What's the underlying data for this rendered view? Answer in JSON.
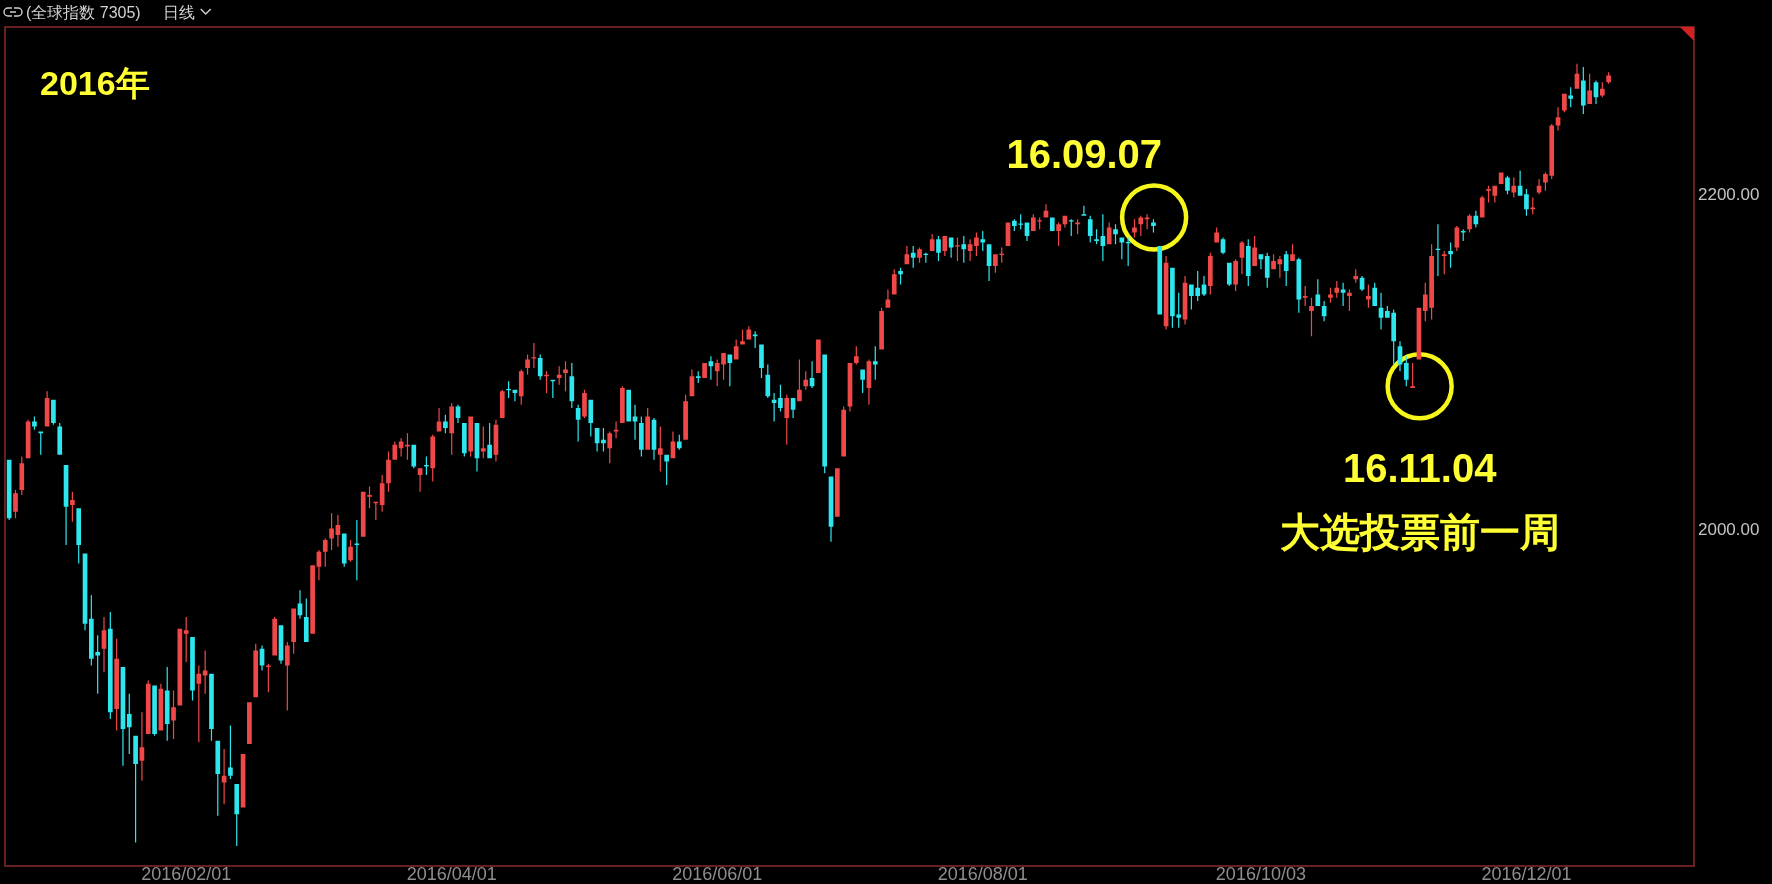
{
  "chart_data": {
    "type": "candlestick",
    "title": "2016年",
    "categories": [
      null,
      null,
      null,
      null,
      null,
      null,
      null,
      null,
      null,
      null,
      null,
      null,
      null,
      null,
      null,
      null,
      null,
      null,
      null,
      null,
      null,
      null,
      null,
      null,
      null,
      null,
      null,
      null,
      "2016/02/01",
      null,
      null,
      null,
      null,
      null,
      null,
      null,
      null,
      null,
      null,
      null,
      null,
      null,
      null,
      null,
      null,
      null,
      null,
      null,
      null,
      null,
      null,
      null,
      null,
      null,
      null,
      null,
      null,
      null,
      null,
      null,
      null,
      null,
      null,
      null,
      null,
      null,
      null,
      null,
      null,
      null,
      "2016/04/01",
      null,
      null,
      null,
      null,
      null,
      null,
      null,
      null,
      null,
      null,
      null,
      null,
      null,
      null,
      null,
      null,
      null,
      null,
      null,
      null,
      null,
      null,
      null,
      null,
      null,
      null,
      null,
      null,
      null,
      null,
      null,
      null,
      null,
      null,
      null,
      null,
      null,
      null,
      null,
      null,
      null,
      "2016/06/01",
      null,
      null,
      null,
      null,
      null,
      null,
      null,
      null,
      null,
      null,
      null,
      null,
      null,
      null,
      null,
      null,
      null,
      null,
      null,
      null,
      null,
      null,
      null,
      null,
      null,
      null,
      null,
      null,
      null,
      null,
      null,
      null,
      null,
      null,
      null,
      null,
      null,
      null,
      null,
      null,
      null,
      "2016/08/01",
      null,
      null,
      null,
      null,
      null,
      null,
      null,
      null,
      null,
      null,
      null,
      null,
      null,
      null,
      null,
      null,
      null,
      null,
      null,
      null,
      null,
      null,
      null,
      null,
      null,
      null,
      null,
      null,
      null,
      null,
      null,
      null,
      null,
      null,
      null,
      null,
      null,
      null,
      null,
      null,
      null,
      null,
      null,
      "2016/10/03",
      null,
      null,
      null,
      null,
      null,
      null,
      null,
      null,
      null,
      null,
      null,
      null,
      null,
      null,
      null,
      null,
      null,
      null,
      null,
      null,
      null,
      null,
      null,
      null,
      null,
      null,
      null,
      null,
      null,
      null,
      null,
      null,
      null,
      null,
      null,
      null,
      null,
      null,
      null,
      null,
      null,
      "2016/12/01",
      null,
      null,
      null,
      null,
      null,
      null,
      null,
      null,
      null,
      null,
      null,
      null,
      null
    ],
    "ohlc": [
      [
        2041,
        2041,
        2005,
        2006
      ],
      [
        2010,
        2023,
        2006,
        2021
      ],
      [
        2023,
        2043,
        2020,
        2039
      ],
      [
        2042,
        2065,
        2042,
        2064
      ],
      [
        2064,
        2067,
        2059,
        2061
      ],
      [
        2058,
        2058,
        2044,
        2057
      ],
      [
        2061,
        2082,
        2061,
        2078
      ],
      [
        2077,
        2077,
        2062,
        2063
      ],
      [
        2061,
        2063,
        2044,
        2044
      ],
      [
        2038,
        2038,
        1990,
        2013
      ],
      [
        2014,
        2022,
        2004,
        2017
      ],
      [
        2012,
        2012,
        1979,
        1990
      ],
      [
        1985,
        1985,
        1939,
        1943
      ],
      [
        1946,
        1960,
        1918,
        1922
      ],
      [
        1926,
        1936,
        1901,
        1924
      ],
      [
        1928,
        1947,
        1914,
        1939
      ],
      [
        1940,
        1950,
        1886,
        1890
      ],
      [
        1892,
        1934,
        1879,
        1922
      ],
      [
        1917,
        1917,
        1858,
        1880
      ],
      [
        1889,
        1901,
        1865,
        1881
      ],
      [
        1876,
        1876,
        1812,
        1859
      ],
      [
        1861,
        1890,
        1849,
        1869
      ],
      [
        1877,
        1909,
        1877,
        1907
      ],
      [
        1906,
        1906,
        1876,
        1877
      ],
      [
        1879,
        1907,
        1879,
        1904
      ],
      [
        1903,
        1917,
        1873,
        1883
      ],
      [
        1885,
        1903,
        1874,
        1893
      ],
      [
        1894,
        1940,
        1894,
        1940
      ],
      [
        1937,
        1947,
        1920,
        1939
      ],
      [
        1935,
        1935,
        1897,
        1903
      ],
      [
        1907,
        1918,
        1872,
        1913
      ],
      [
        1912,
        1927,
        1901,
        1915
      ],
      [
        1913,
        1913,
        1873,
        1880
      ],
      [
        1873,
        1873,
        1828,
        1853
      ],
      [
        1848,
        1868,
        1835,
        1852
      ],
      [
        1857,
        1882,
        1850,
        1852
      ],
      [
        1847,
        1847,
        1810,
        1829
      ],
      [
        1833,
        1865,
        1833,
        1865
      ],
      [
        1871,
        1896,
        1871,
        1896
      ],
      [
        1899,
        1931,
        1899,
        1927
      ],
      [
        1928,
        1930,
        1915,
        1918
      ],
      [
        1917,
        1919,
        1902,
        1918
      ],
      [
        1924,
        1947,
        1924,
        1946
      ],
      [
        1942,
        1942,
        1919,
        1921
      ],
      [
        1918,
        1932,
        1891,
        1930
      ],
      [
        1932,
        1952,
        1925,
        1952
      ],
      [
        1955,
        1963,
        1946,
        1948
      ],
      [
        1947,
        1958,
        1932,
        1932
      ],
      [
        1937,
        1978,
        1937,
        1978
      ],
      [
        1977,
        1987,
        1969,
        1986
      ],
      [
        1986,
        1994,
        1977,
        1993
      ],
      [
        1994,
        2009,
        1987,
        2000
      ],
      [
        1996,
        2008,
        1989,
        2002
      ],
      [
        1997,
        1997,
        1977,
        1979
      ],
      [
        1981,
        1993,
        1980,
        1989
      ],
      [
        1991,
        2005,
        1969,
        1990
      ],
      [
        1995,
        2022,
        1995,
        2022
      ],
      [
        2019,
        2025,
        2012,
        2020
      ],
      [
        2015,
        2016,
        2005,
        2016
      ],
      [
        2014,
        2032,
        2010,
        2027
      ],
      [
        2027,
        2046,
        2022,
        2041
      ],
      [
        2041,
        2052,
        2041,
        2050
      ],
      [
        2048,
        2054,
        2043,
        2052
      ],
      [
        2049,
        2057,
        2041,
        2050
      ],
      [
        2050,
        2050,
        2036,
        2037
      ],
      [
        2032,
        2036,
        2022,
        2036
      ],
      [
        2038,
        2043,
        2032,
        2037
      ],
      [
        2036,
        2056,
        2028,
        2055
      ],
      [
        2058,
        2072,
        2058,
        2064
      ],
      [
        2064,
        2068,
        2057,
        2060
      ],
      [
        2057,
        2075,
        2044,
        2073
      ],
      [
        2073,
        2074,
        2063,
        2066
      ],
      [
        2063,
        2063,
        2043,
        2045
      ],
      [
        2046,
        2067,
        2043,
        2067
      ],
      [
        2063,
        2063,
        2034,
        2042
      ],
      [
        2046,
        2061,
        2042,
        2048
      ],
      [
        2050,
        2063,
        2042,
        2042
      ],
      [
        2044,
        2065,
        2040,
        2062
      ],
      [
        2066,
        2083,
        2066,
        2082
      ],
      [
        2083,
        2088,
        2078,
        2083
      ],
      [
        2083,
        2083,
        2076,
        2081
      ],
      [
        2079,
        2095,
        2074,
        2094
      ],
      [
        2096,
        2104,
        2092,
        2101
      ],
      [
        2102,
        2111,
        2096,
        2102
      ],
      [
        2102,
        2104,
        2089,
        2091
      ],
      [
        2091,
        2094,
        2081,
        2092
      ],
      [
        2089,
        2089,
        2078,
        2088
      ],
      [
        2090,
        2097,
        2086,
        2092
      ],
      [
        2093,
        2100,
        2082,
        2095
      ],
      [
        2091,
        2099,
        2072,
        2076
      ],
      [
        2072,
        2074,
        2052,
        2065
      ],
      [
        2067,
        2083,
        2066,
        2081
      ],
      [
        2077,
        2077,
        2055,
        2063
      ],
      [
        2060,
        2060,
        2046,
        2051
      ],
      [
        2053,
        2060,
        2046,
        2051
      ],
      [
        2048,
        2058,
        2039,
        2057
      ],
      [
        2058,
        2064,
        2054,
        2059
      ],
      [
        2063,
        2085,
        2063,
        2084
      ],
      [
        2083,
        2083,
        2064,
        2064
      ],
      [
        2067,
        2074,
        2053,
        2064
      ],
      [
        2063,
        2067,
        2043,
        2047
      ],
      [
        2047,
        2072,
        2047,
        2067
      ],
      [
        2065,
        2066,
        2041,
        2047
      ],
      [
        2044,
        2061,
        2034,
        2048
      ],
      [
        2044,
        2044,
        2026,
        2040
      ],
      [
        2042,
        2058,
        2042,
        2052
      ],
      [
        2052,
        2056,
        2047,
        2048
      ],
      [
        2053,
        2080,
        2053,
        2076
      ],
      [
        2079,
        2095,
        2079,
        2091
      ],
      [
        2091,
        2094,
        2087,
        2090
      ],
      [
        2090,
        2099,
        2090,
        2099
      ],
      [
        2100,
        2103,
        2089,
        2097
      ],
      [
        2094,
        2101,
        2085,
        2099
      ],
      [
        2098,
        2105,
        2089,
        2105
      ],
      [
        2104,
        2104,
        2085,
        2099
      ],
      [
        2101,
        2113,
        2101,
        2109
      ],
      [
        2110,
        2119,
        2110,
        2112
      ],
      [
        2113,
        2121,
        2113,
        2119
      ],
      [
        2116,
        2118,
        2108,
        2115
      ],
      [
        2110,
        2110,
        2090,
        2096
      ],
      [
        2092,
        2098,
        2078,
        2079
      ],
      [
        2077,
        2081,
        2064,
        2075
      ],
      [
        2078,
        2086,
        2070,
        2072
      ],
      [
        2066,
        2080,
        2050,
        2078
      ],
      [
        2078,
        2078,
        2066,
        2071
      ],
      [
        2076,
        2101,
        2076,
        2083
      ],
      [
        2085,
        2094,
        2083,
        2089
      ],
      [
        2090,
        2100,
        2084,
        2085
      ],
      [
        2093,
        2113,
        2093,
        2113
      ],
      [
        2104,
        2104,
        2033,
        2037
      ],
      [
        2031,
        2031,
        1992,
        2001
      ],
      [
        2007,
        2036,
        2007,
        2036
      ],
      [
        2043,
        2073,
        2043,
        2071
      ],
      [
        2073,
        2099,
        2070,
        2099
      ],
      [
        2099,
        2109,
        2098,
        2103
      ],
      [
        2095,
        2095,
        2081,
        2089
      ],
      [
        2084,
        2101,
        2074,
        2100
      ],
      [
        2100,
        2109,
        2089,
        2098
      ],
      [
        2107,
        2132,
        2107,
        2130
      ],
      [
        2132,
        2143,
        2132,
        2137
      ],
      [
        2140,
        2155,
        2140,
        2152
      ],
      [
        2154,
        2156,
        2146,
        2152
      ],
      [
        2158,
        2169,
        2158,
        2164
      ],
      [
        2165,
        2169,
        2156,
        2162
      ],
      [
        2162,
        2168,
        2159,
        2167
      ],
      [
        2164,
        2165,
        2159,
        2164
      ],
      [
        2166,
        2176,
        2166,
        2173
      ],
      [
        2173,
        2175,
        2160,
        2165
      ],
      [
        2166,
        2175,
        2163,
        2175
      ],
      [
        2174,
        2174,
        2162,
        2168
      ],
      [
        2169,
        2174,
        2160,
        2169
      ],
      [
        2170,
        2175,
        2159,
        2167
      ],
      [
        2166,
        2173,
        2160,
        2170
      ],
      [
        2169,
        2177,
        2163,
        2174
      ],
      [
        2173,
        2178,
        2166,
        2171
      ],
      [
        2170,
        2170,
        2148,
        2157
      ],
      [
        2157,
        2164,
        2153,
        2164
      ],
      [
        2164,
        2168,
        2159,
        2164
      ],
      [
        2169,
        2183,
        2169,
        2183
      ],
      [
        2184,
        2185,
        2178,
        2181
      ],
      [
        2182,
        2188,
        2179,
        2182
      ],
      [
        2183,
        2183,
        2172,
        2175
      ],
      [
        2178,
        2188,
        2178,
        2186
      ],
      [
        2184,
        2186,
        2179,
        2184
      ],
      [
        2186,
        2194,
        2186,
        2190
      ],
      [
        2186,
        2186,
        2178,
        2178
      ],
      [
        2178,
        2183,
        2169,
        2182
      ],
      [
        2182,
        2187,
        2180,
        2187
      ],
      [
        2184,
        2185,
        2175,
        2184
      ],
      [
        2182,
        2185,
        2176,
        2183
      ],
      [
        2188,
        2193,
        2187,
        2187
      ],
      [
        2185,
        2187,
        2171,
        2175
      ],
      [
        2173,
        2179,
        2170,
        2172
      ],
      [
        2175,
        2188,
        2160,
        2169
      ],
      [
        2170,
        2183,
        2170,
        2180
      ],
      [
        2179,
        2182,
        2170,
        2176
      ],
      [
        2174,
        2174,
        2161,
        2171
      ],
      [
        2171,
        2174,
        2157,
        2171
      ],
      [
        2177,
        2185,
        2174,
        2180
      ],
      [
        2182,
        2187,
        2175,
        2186
      ],
      [
        2185,
        2188,
        2179,
        2186
      ],
      [
        2183,
        2185,
        2177,
        2181
      ],
      [
        2169,
        2169,
        2128,
        2128
      ],
      [
        2121,
        2163,
        2119,
        2159
      ],
      [
        2156,
        2156,
        2120,
        2127
      ],
      [
        2128,
        2141,
        2120,
        2126
      ],
      [
        2125,
        2151,
        2122,
        2147
      ],
      [
        2146,
        2146,
        2131,
        2139
      ],
      [
        2144,
        2154,
        2136,
        2139
      ],
      [
        2146,
        2151,
        2139,
        2140
      ],
      [
        2145,
        2165,
        2140,
        2163
      ],
      [
        2171,
        2180,
        2171,
        2177
      ],
      [
        2173,
        2174,
        2164,
        2165
      ],
      [
        2159,
        2159,
        2145,
        2146
      ],
      [
        2146,
        2161,
        2142,
        2160
      ],
      [
        2162,
        2172,
        2152,
        2171
      ],
      [
        2169,
        2173,
        2145,
        2151
      ],
      [
        2157,
        2175,
        2157,
        2168
      ],
      [
        2164,
        2164,
        2155,
        2161
      ],
      [
        2163,
        2165,
        2144,
        2150
      ],
      [
        2155,
        2164,
        2155,
        2160
      ],
      [
        2158,
        2163,
        2150,
        2161
      ],
      [
        2164,
        2166,
        2145,
        2154
      ],
      [
        2160,
        2170,
        2160,
        2164
      ],
      [
        2161,
        2162,
        2129,
        2137
      ],
      [
        2138,
        2145,
        2133,
        2139
      ],
      [
        2130,
        2138,
        2115,
        2133
      ],
      [
        2140,
        2149,
        2133,
        2133
      ],
      [
        2133,
        2136,
        2124,
        2127
      ],
      [
        2138,
        2144,
        2135,
        2140
      ],
      [
        2141,
        2148,
        2138,
        2144
      ],
      [
        2143,
        2147,
        2133,
        2141
      ],
      [
        2139,
        2143,
        2130,
        2141
      ],
      [
        2149,
        2155,
        2147,
        2151
      ],
      [
        2150,
        2151,
        2142,
        2143
      ],
      [
        2137,
        2146,
        2132,
        2139
      ],
      [
        2144,
        2147,
        2133,
        2133
      ],
      [
        2132,
        2141,
        2119,
        2126
      ],
      [
        2130,
        2133,
        2126,
        2126
      ],
      [
        2129,
        2131,
        2098,
        2112
      ],
      [
        2109,
        2112,
        2094,
        2098
      ],
      [
        2099,
        2103,
        2085,
        2089
      ],
      [
        2084,
        2099,
        2084,
        2085
      ],
      [
        2101,
        2132,
        2101,
        2132
      ],
      [
        2130,
        2147,
        2124,
        2140
      ],
      [
        2132,
        2170,
        2125,
        2163
      ],
      [
        2167,
        2182,
        2151,
        2167
      ],
      [
        2163,
        2166,
        2152,
        2164
      ],
      [
        2166,
        2171,
        2156,
        2164
      ],
      [
        2168,
        2181,
        2166,
        2180
      ],
      [
        2178,
        2179,
        2172,
        2177
      ],
      [
        2179,
        2188,
        2177,
        2187
      ],
      [
        2187,
        2190,
        2180,
        2182
      ],
      [
        2186,
        2199,
        2186,
        2198
      ],
      [
        2202,
        2205,
        2195,
        2203
      ],
      [
        2199,
        2205,
        2195,
        2205
      ],
      [
        2206,
        2213,
        2206,
        2213
      ],
      [
        2210,
        2211,
        2200,
        2202
      ],
      [
        2201,
        2210,
        2198,
        2205
      ],
      [
        2205,
        2214,
        2199,
        2199
      ],
      [
        2200,
        2203,
        2187,
        2191
      ],
      [
        2191,
        2198,
        2188,
        2192
      ],
      [
        2201,
        2209,
        2200,
        2205
      ],
      [
        2207,
        2213,
        2202,
        2212
      ],
      [
        2211,
        2242,
        2209,
        2241
      ],
      [
        2241,
        2252,
        2238,
        2246
      ],
      [
        2250,
        2260,
        2249,
        2260
      ],
      [
        2259,
        2264,
        2252,
        2257
      ],
      [
        2263,
        2278,
        2263,
        2272
      ],
      [
        2268,
        2276,
        2248,
        2253
      ],
      [
        2254,
        2272,
        2254,
        2262
      ],
      [
        2267,
        2268,
        2254,
        2258
      ],
      [
        2259,
        2267,
        2258,
        2263
      ],
      [
        2267,
        2273,
        2266,
        2271
      ]
    ],
    "colors": [
      "#2ee6ee",
      "#f04848",
      "#f04848",
      "#f04848",
      "#2ee6ee",
      "#2ee6ee",
      "#f04848",
      "#2ee6ee",
      "#2ee6ee",
      "#2ee6ee",
      "#f04848",
      "#2ee6ee",
      "#2ee6ee",
      "#2ee6ee",
      "#2ee6ee",
      "#f04848",
      "#2ee6ee",
      "#f04848",
      "#2ee6ee",
      "#2ee6ee",
      "#2ee6ee",
      "#f04848",
      "#f04848",
      "#2ee6ee",
      "#f04848",
      "#2ee6ee",
      "#f04848",
      "#f04848",
      "#f04848",
      "#2ee6ee",
      "#f04848",
      "#f04848",
      "#2ee6ee",
      "#2ee6ee",
      "#f04848",
      "#2ee6ee",
      "#2ee6ee",
      "#f04848",
      "#f04848",
      "#f04848",
      "#2ee6ee",
      "#f04848",
      "#f04848",
      "#2ee6ee",
      "#f04848",
      "#f04848",
      "#2ee6ee",
      "#2ee6ee",
      "#f04848",
      "#f04848",
      "#f04848",
      "#f04848",
      "#f04848",
      "#2ee6ee",
      "#f04848",
      "#2ee6ee",
      "#f04848",
      "#f04848",
      "#f04848",
      "#f04848",
      "#f04848",
      "#f04848",
      "#f04848",
      "#f04848",
      "#2ee6ee",
      "#f04848",
      "#2ee6ee",
      "#f04848",
      "#f04848",
      "#2ee6ee",
      "#f04848",
      "#2ee6ee",
      "#2ee6ee",
      "#f04848",
      "#2ee6ee",
      "#f04848",
      "#2ee6ee",
      "#f04848",
      "#f04848",
      "#2ee6ee",
      "#2ee6ee",
      "#f04848",
      "#f04848",
      "#f04848",
      "#2ee6ee",
      "#f04848",
      "#2ee6ee",
      "#f04848",
      "#f04848",
      "#2ee6ee",
      "#2ee6ee",
      "#f04848",
      "#2ee6ee",
      "#2ee6ee",
      "#2ee6ee",
      "#f04848",
      "#f04848",
      "#f04848",
      "#2ee6ee",
      "#2ee6ee",
      "#2ee6ee",
      "#f04848",
      "#2ee6ee",
      "#f04848",
      "#2ee6ee",
      "#f04848",
      "#2ee6ee",
      "#f04848",
      "#f04848",
      "#2ee6ee",
      "#f04848",
      "#2ee6ee",
      "#f04848",
      "#f04848",
      "#2ee6ee",
      "#f04848",
      "#f04848",
      "#f04848",
      "#2ee6ee",
      "#2ee6ee",
      "#2ee6ee",
      "#2ee6ee",
      "#2ee6ee",
      "#f04848",
      "#2ee6ee",
      "#f04848",
      "#f04848",
      "#2ee6ee",
      "#f04848",
      "#2ee6ee",
      "#2ee6ee",
      "#f04848",
      "#f04848",
      "#f04848",
      "#f04848",
      "#2ee6ee",
      "#f04848",
      "#2ee6ee",
      "#f04848",
      "#f04848",
      "#f04848",
      "#2ee6ee",
      "#f04848",
      "#2ee6ee",
      "#f04848",
      "#2ee6ee",
      "#f04848",
      "#2ee6ee",
      "#f04848",
      "#2ee6ee",
      "#f04848",
      "#2ee6ee",
      "#f04848",
      "#f04848",
      "#2ee6ee",
      "#2ee6ee",
      "#f04848",
      "#f04848",
      "#f04848",
      "#2ee6ee",
      "#2ee6ee",
      "#2ee6ee",
      "#f04848",
      "#f04848",
      "#f04848",
      "#2ee6ee",
      "#f04848",
      "#f04848",
      "#2ee6ee",
      "#f04848",
      "#2ee6ee",
      "#2ee6ee",
      "#2ee6ee",
      "#2ee6ee",
      "#f04848",
      "#2ee6ee",
      "#2ee6ee",
      "#2ee6ee",
      "#f04848",
      "#f04848",
      "#f04848",
      "#2ee6ee",
      "#2ee6ee",
      "#f04848",
      "#2ee6ee",
      "#2ee6ee",
      "#f04848",
      "#2ee6ee",
      "#2ee6ee",
      "#2ee6ee",
      "#f04848",
      "#f04848",
      "#2ee6ee",
      "#2ee6ee",
      "#f04848",
      "#f04848",
      "#2ee6ee",
      "#f04848",
      "#2ee6ee",
      "#2ee6ee",
      "#f04848",
      "#f04848",
      "#2ee6ee",
      "#f04848",
      "#2ee6ee",
      "#f04848",
      "#f04848",
      "#2ee6ee",
      "#2ee6ee",
      "#f04848",
      "#f04848",
      "#2ee6ee",
      "#f04848",
      "#f04848",
      "#2ee6ee",
      "#f04848",
      "#2ee6ee",
      "#2ee6ee",
      "#2ee6ee",
      "#2ee6ee",
      "#2ee6ee",
      "#2ee6ee",
      "#f04848",
      "#f04848",
      "#f04848",
      "#f04848",
      "#2ee6ee",
      "#f04848",
      "#2ee6ee",
      "#f04848",
      "#2ee6ee",
      "#f04848",
      "#2ee6ee",
      "#f04848",
      "#f04848",
      "#f04848",
      "#f04848",
      "#2ee6ee",
      "#f04848",
      "#2ee6ee",
      "#2ee6ee",
      "#f04848",
      "#f04848",
      "#f04848",
      "#f04848",
      "#f04848",
      "#f04848",
      "#2ee6ee",
      "#f04848",
      "#2ee6ee",
      "#f04848",
      "#2ee6ee",
      "#f04848",
      "#f04848"
    ],
    "ylim": [
      1798,
      2300
    ],
    "yticks": [
      {
        "value": 2200,
        "label": "2200.00"
      },
      {
        "value": 2000,
        "label": "2000.00"
      }
    ],
    "annotations": [
      "(全球指数 7305)",
      "日线",
      {
        "text": "16.09.07",
        "y": 2186
      },
      {
        "text": "16.11.04",
        "y": 2085
      },
      "大选投票前一周"
    ]
  }
}
